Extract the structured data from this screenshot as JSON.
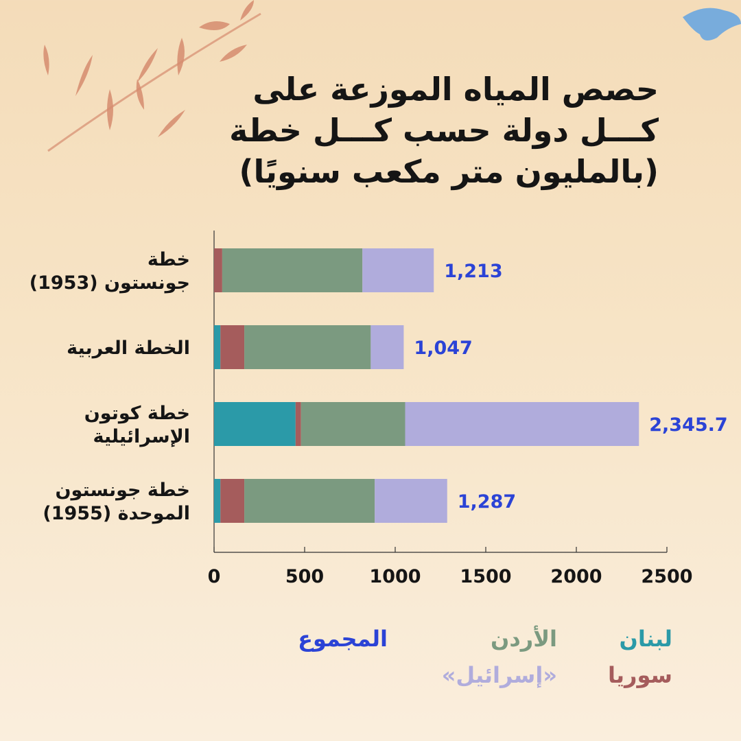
{
  "title_lines": [
    "حصص المياه الموزعة على",
    "كـــل دولة حسب كـــل خطة",
    "(بالمليون متر مكعب سنويًا)"
  ],
  "colors": {
    "lebanon": "#2b9aa8",
    "syria": "#a55c5c",
    "jordan": "#7b9a80",
    "israel": "#b0acdc",
    "total": "#2b43d6",
    "text": "#151515",
    "axis": "#333333"
  },
  "legend": {
    "lebanon": "لبنان",
    "jordan": "الأردن",
    "total": "المجموع",
    "syria": "سوريا",
    "israel": "«إسرائيل»"
  },
  "chart_data": {
    "type": "bar",
    "orientation": "horizontal",
    "stacked": true,
    "categories": [
      [
        "خطة",
        "جونستون (1953)"
      ],
      [
        "الخطة العربية"
      ],
      [
        "خطة كوتون",
        "الإسرائيلية"
      ],
      [
        "خطة جونستون",
        "الموحدة (1955)"
      ]
    ],
    "series": [
      {
        "name": "لبنان",
        "key": "lebanon",
        "values": [
          0,
          35,
          450,
          35
        ]
      },
      {
        "name": "سوريا",
        "key": "syria",
        "values": [
          45,
          132,
          30,
          132
        ]
      },
      {
        "name": "الأردن",
        "key": "jordan",
        "values": [
          774,
          698,
          575,
          720
        ]
      },
      {
        "name": "«إسرائيل»",
        "key": "israel",
        "values": [
          394,
          182,
          1290.7,
          400
        ]
      }
    ],
    "totals": [
      "1,213",
      "1,047",
      "2,345.7",
      "1,287"
    ],
    "xticks": [
      0,
      500,
      1000,
      1500,
      2000,
      2500
    ],
    "xlim": [
      0,
      2500
    ],
    "grid": false
  }
}
